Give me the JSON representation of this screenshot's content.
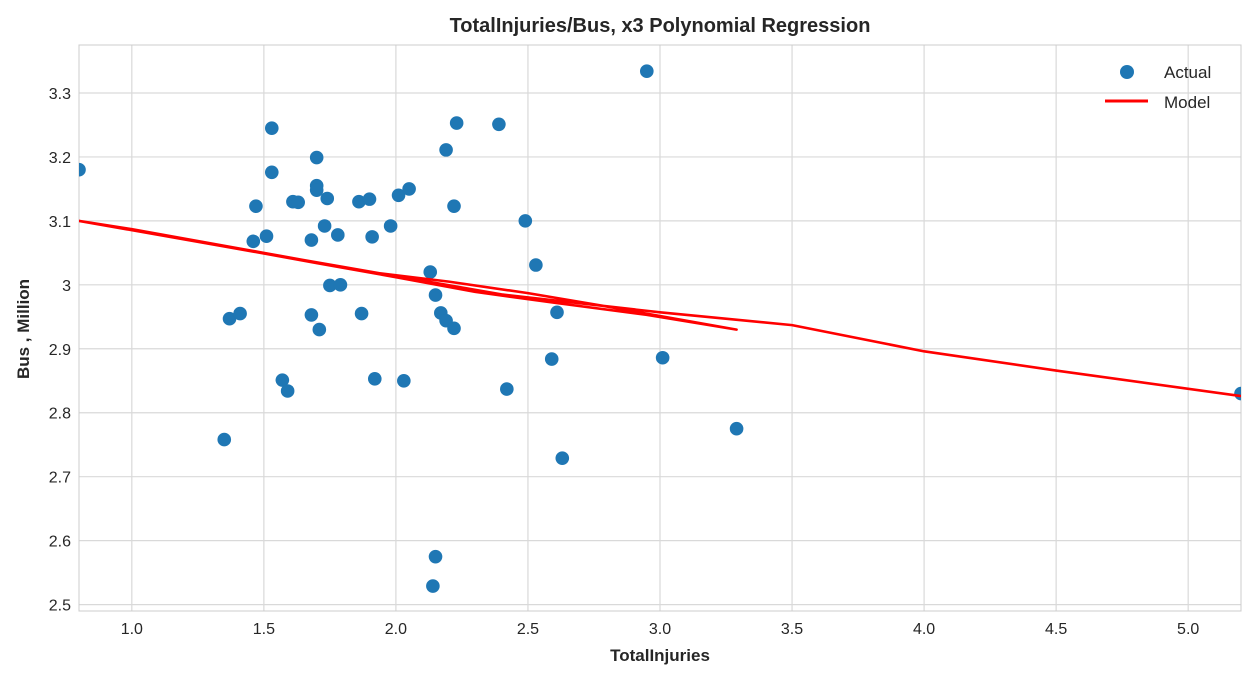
{
  "chart_data": {
    "type": "scatter",
    "title": "TotalInjuries/Bus, x3 Polynomial Regression",
    "xlabel": "TotalInjuries",
    "ylabel": "Bus , Million",
    "xlim": [
      0.8,
      5.2
    ],
    "ylim": [
      2.49,
      3.375
    ],
    "x_ticks": [
      1.0,
      1.5,
      2.0,
      2.5,
      3.0,
      3.5,
      4.0,
      4.5,
      5.0
    ],
    "x_tick_labels": [
      "1.0",
      "1.5",
      "2.0",
      "2.5",
      "3.0",
      "3.5",
      "4.0",
      "4.5",
      "5.0"
    ],
    "y_ticks": [
      2.5,
      2.6,
      2.7,
      2.8,
      2.9,
      3.0,
      3.1,
      3.2,
      3.3
    ],
    "y_tick_labels": [
      "2.5",
      "2.6",
      "2.7",
      "2.8",
      "2.9",
      "3",
      "3.1",
      "3.2",
      "3.3"
    ],
    "grid": true,
    "legend_position": "top-right",
    "series": [
      {
        "name": "Actual",
        "kind": "scatter",
        "color": "#1f77b4",
        "points": [
          [
            0.8,
            3.18
          ],
          [
            1.35,
            2.758
          ],
          [
            1.37,
            2.947
          ],
          [
            1.41,
            2.955
          ],
          [
            1.46,
            3.068
          ],
          [
            1.47,
            3.123
          ],
          [
            1.51,
            3.076
          ],
          [
            1.53,
            3.245
          ],
          [
            1.53,
            3.176
          ],
          [
            1.57,
            2.851
          ],
          [
            1.59,
            2.834
          ],
          [
            1.61,
            3.13
          ],
          [
            1.63,
            3.129
          ],
          [
            1.68,
            3.07
          ],
          [
            1.68,
            2.953
          ],
          [
            1.7,
            3.199
          ],
          [
            1.7,
            3.155
          ],
          [
            1.7,
            3.148
          ],
          [
            1.71,
            2.93
          ],
          [
            1.73,
            3.092
          ],
          [
            1.74,
            3.135
          ],
          [
            1.75,
            2.999
          ],
          [
            1.78,
            3.078
          ],
          [
            1.79,
            3.0
          ],
          [
            1.86,
            3.13
          ],
          [
            1.87,
            2.955
          ],
          [
            1.9,
            3.134
          ],
          [
            1.91,
            3.075
          ],
          [
            1.92,
            2.853
          ],
          [
            1.98,
            3.092
          ],
          [
            2.01,
            3.14
          ],
          [
            2.03,
            2.85
          ],
          [
            2.05,
            3.15
          ],
          [
            2.13,
            3.02
          ],
          [
            2.14,
            2.529
          ],
          [
            2.15,
            2.575
          ],
          [
            2.15,
            2.984
          ],
          [
            2.17,
            2.956
          ],
          [
            2.19,
            3.211
          ],
          [
            2.19,
            2.944
          ],
          [
            2.22,
            3.123
          ],
          [
            2.22,
            2.932
          ],
          [
            2.23,
            3.253
          ],
          [
            2.39,
            3.251
          ],
          [
            2.42,
            2.837
          ],
          [
            2.49,
            3.1
          ],
          [
            2.53,
            3.031
          ],
          [
            2.59,
            2.884
          ],
          [
            2.61,
            2.957
          ],
          [
            2.63,
            2.729
          ],
          [
            2.95,
            3.334
          ],
          [
            3.01,
            2.886
          ],
          [
            3.29,
            2.775
          ],
          [
            5.2,
            2.83
          ]
        ]
      },
      {
        "name": "Model",
        "kind": "line",
        "color": "#ff0000",
        "points": [
          [
            0.8,
            3.1
          ],
          [
            1.35,
            3.06
          ],
          [
            1.5,
            3.049
          ],
          [
            1.7,
            3.034
          ],
          [
            2.0,
            3.012
          ],
          [
            2.3,
            2.989
          ],
          [
            2.6,
            2.972
          ],
          [
            2.95,
            2.953
          ],
          [
            3.29,
            2.93
          ],
          [
            2.8,
            2.966
          ],
          [
            2.5,
            2.987
          ],
          [
            2.2,
            3.005
          ],
          [
            1.9,
            3.02
          ],
          [
            1.5,
            3.05
          ],
          [
            1.0,
            3.087
          ],
          [
            0.8,
            3.1
          ],
          [
            1.2,
            3.071
          ],
          [
            1.8,
            3.028
          ],
          [
            2.4,
            2.985
          ],
          [
            3.0,
            2.957
          ],
          [
            3.5,
            2.937
          ],
          [
            4.0,
            2.896
          ],
          [
            4.5,
            2.866
          ],
          [
            5.2,
            2.826
          ]
        ]
      }
    ]
  }
}
